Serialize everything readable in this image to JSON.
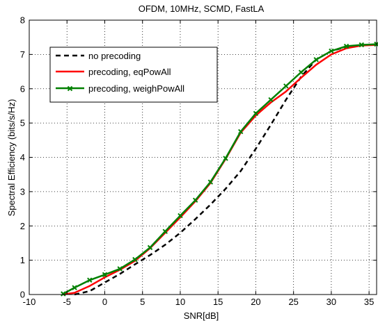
{
  "chart_data": {
    "type": "line",
    "title": "OFDM, 10MHz, SCMD, FastLA",
    "xlabel": "SNR[dB]",
    "ylabel": "Spectral Efficiency (bits/s/Hz)",
    "xlim": [
      -10,
      36
    ],
    "ylim": [
      0,
      8
    ],
    "xticks": [
      "-10",
      "-5",
      "0",
      "5",
      "10",
      "15",
      "20",
      "25",
      "30",
      "35"
    ],
    "yticks": [
      "0",
      "1",
      "2",
      "3",
      "4",
      "5",
      "6",
      "7",
      "8"
    ],
    "grid": true,
    "legend_position": "top-left",
    "series": [
      {
        "name": "no precoding",
        "color": "#000000",
        "style": "dashed",
        "marker": "none",
        "x": [
          -4,
          -2,
          0,
          2,
          4,
          6,
          8,
          10,
          12,
          14,
          16,
          18,
          20,
          22,
          24,
          26,
          28,
          30,
          32,
          34,
          36
        ],
        "y": [
          0.0,
          0.1,
          0.35,
          0.6,
          0.88,
          1.15,
          1.45,
          1.8,
          2.2,
          2.62,
          3.08,
          3.6,
          4.25,
          4.95,
          5.68,
          6.35,
          6.85,
          7.1,
          7.22,
          7.27,
          7.28
        ]
      },
      {
        "name": "precoding, eqPowAll",
        "color": "#ff0000",
        "style": "solid",
        "marker": "none",
        "x": [
          -5.5,
          -4,
          -2,
          0,
          2,
          4,
          6,
          8,
          10,
          12,
          14,
          16,
          18,
          20,
          22,
          24,
          26,
          28,
          30,
          32,
          34,
          36
        ],
        "y": [
          0.0,
          0.05,
          0.25,
          0.5,
          0.72,
          0.98,
          1.35,
          1.8,
          2.25,
          2.72,
          3.25,
          3.95,
          4.72,
          5.22,
          5.6,
          5.92,
          6.32,
          6.7,
          7.0,
          7.18,
          7.26,
          7.28
        ]
      },
      {
        "name": "precoding, weighPowAll",
        "color": "#008000",
        "style": "solid",
        "marker": "x",
        "x": [
          -5.5,
          -4,
          -2,
          0,
          2,
          4,
          6,
          8,
          10,
          12,
          14,
          16,
          18,
          20,
          22,
          24,
          26,
          28,
          30,
          32,
          34,
          36
        ],
        "y": [
          0.02,
          0.2,
          0.42,
          0.58,
          0.75,
          1.02,
          1.37,
          1.84,
          2.3,
          2.75,
          3.28,
          3.97,
          4.75,
          5.28,
          5.68,
          6.08,
          6.48,
          6.85,
          7.1,
          7.24,
          7.28,
          7.3
        ]
      }
    ]
  }
}
